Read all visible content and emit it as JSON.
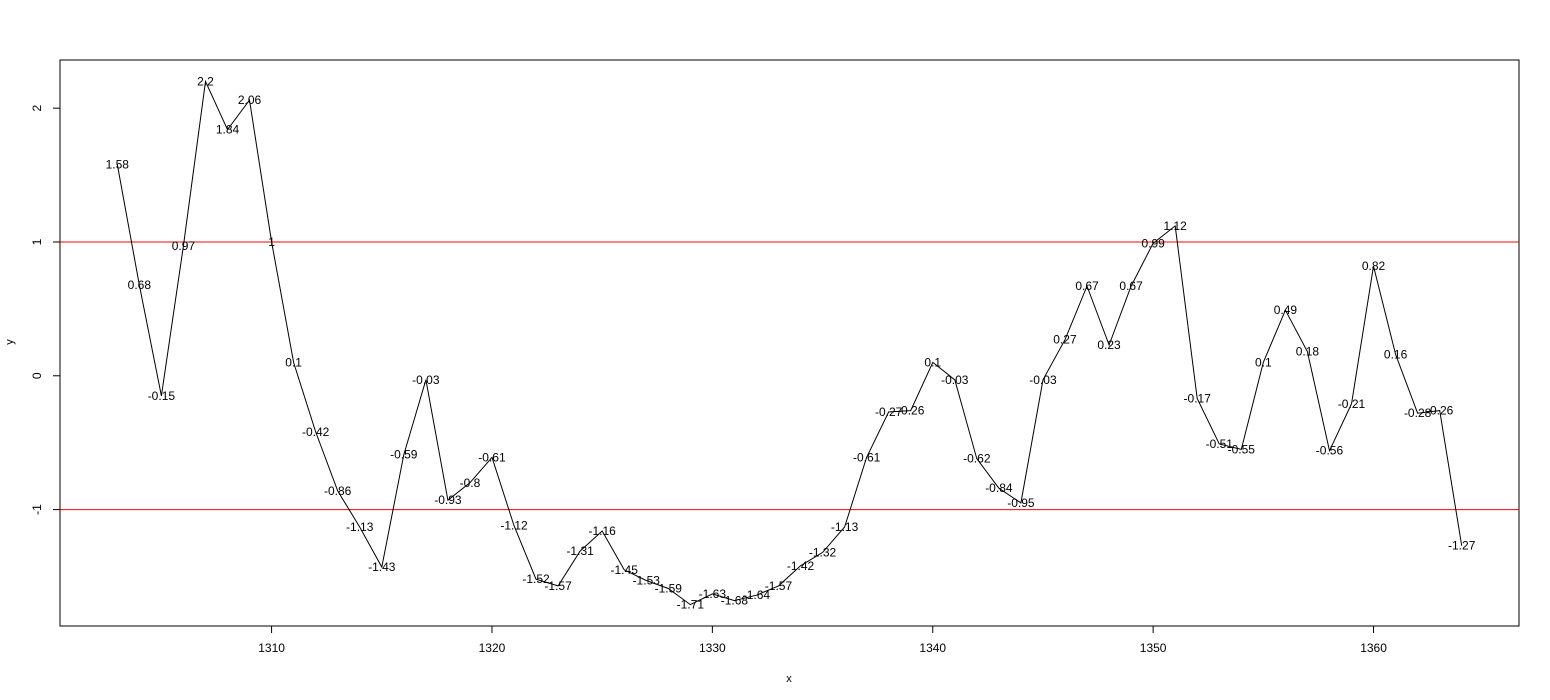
{
  "chart_data": {
    "type": "line",
    "title": "",
    "xlabel": "x",
    "ylabel": "y",
    "xlim": [
      1300.4,
      1366.6
    ],
    "ylim": [
      -1.87,
      2.36
    ],
    "xticks": [
      1310,
      1320,
      1330,
      1340,
      1350,
      1360
    ],
    "xtick_labels": [
      "1310",
      "1320",
      "1330",
      "1340",
      "1350",
      "1360"
    ],
    "yticks": [
      -1,
      0,
      1,
      2
    ],
    "ytick_labels": [
      "-1",
      "0",
      "1",
      "2"
    ],
    "grid": false,
    "legend": "none",
    "line_color": "#000000",
    "reference_lines": [
      {
        "y": 1,
        "color": "#ff0000"
      },
      {
        "y": -1,
        "color": "#ff0000"
      }
    ],
    "series": [
      {
        "x": [
          1303,
          1304,
          1305,
          1306,
          1307,
          1308,
          1309,
          1310,
          1311,
          1312,
          1313,
          1314,
          1315,
          1316,
          1317,
          1318,
          1319,
          1320,
          1321,
          1322,
          1323,
          1324,
          1325,
          1326,
          1327,
          1328,
          1329,
          1330,
          1331,
          1332,
          1333,
          1334,
          1335,
          1336,
          1337,
          1338,
          1339,
          1340,
          1341,
          1342,
          1343,
          1344,
          1345,
          1346,
          1347,
          1348,
          1349,
          1350,
          1351,
          1352,
          1353,
          1354,
          1355,
          1356,
          1357,
          1358,
          1359,
          1360,
          1361,
          1362,
          1363,
          1364
        ],
        "values": [
          1.58,
          0.68,
          -0.15,
          0.97,
          2.2,
          1.84,
          2.06,
          1,
          0.1,
          -0.42,
          -0.86,
          -1.13,
          -1.43,
          -0.59,
          -0.03,
          -0.93,
          -0.8,
          -0.61,
          -1.12,
          -1.52,
          -1.57,
          -1.31,
          -1.16,
          -1.45,
          -1.53,
          -1.59,
          -1.71,
          -1.63,
          -1.68,
          -1.64,
          -1.57,
          -1.42,
          -1.32,
          -1.13,
          -0.61,
          -0.27,
          -0.26,
          0.1,
          -0.03,
          -0.62,
          -0.84,
          -0.95,
          -0.03,
          0.27,
          0.67,
          0.23,
          0.67,
          0.99,
          1.12,
          -0.17,
          -0.51,
          -0.55,
          0.1,
          0.49,
          0.18,
          -0.56,
          -0.21,
          0.82,
          0.16,
          -0.28,
          -0.26,
          -1.27
        ],
        "labels": [
          "1.58",
          "0.68",
          "-0.15",
          "0.97",
          "2.2",
          "1.84",
          "2.06",
          "1",
          "0.1",
          "-0.42",
          "-0.86",
          "-1.13",
          "-1.43",
          "-0.59",
          "-0.03",
          "-0.93",
          "-0.8",
          "-0.61",
          "-1.12",
          "-1.52",
          "-1.57",
          "-1.31",
          "-1.16",
          "-1.45",
          "-1.53",
          "-1.59",
          "-1.71",
          "-1.63",
          "-1.68",
          "-1.64",
          "-1.57",
          "-1.42",
          "-1.32",
          "-1.13",
          "-0.61",
          "-0.27",
          "-0.26",
          "0.1",
          "-0.03",
          "-0.62",
          "-0.84",
          "-0.95",
          "-0.03",
          "0.27",
          "0.67",
          "0.23",
          "0.67",
          "0.99",
          "1.12",
          "-0.17",
          "-0.51",
          "-0.55",
          "0.1",
          "0.49",
          "0.18",
          "-0.56",
          "-0.21",
          "0.82",
          "0.16",
          "-0.28",
          "-0.26",
          "-1.27"
        ]
      }
    ]
  }
}
